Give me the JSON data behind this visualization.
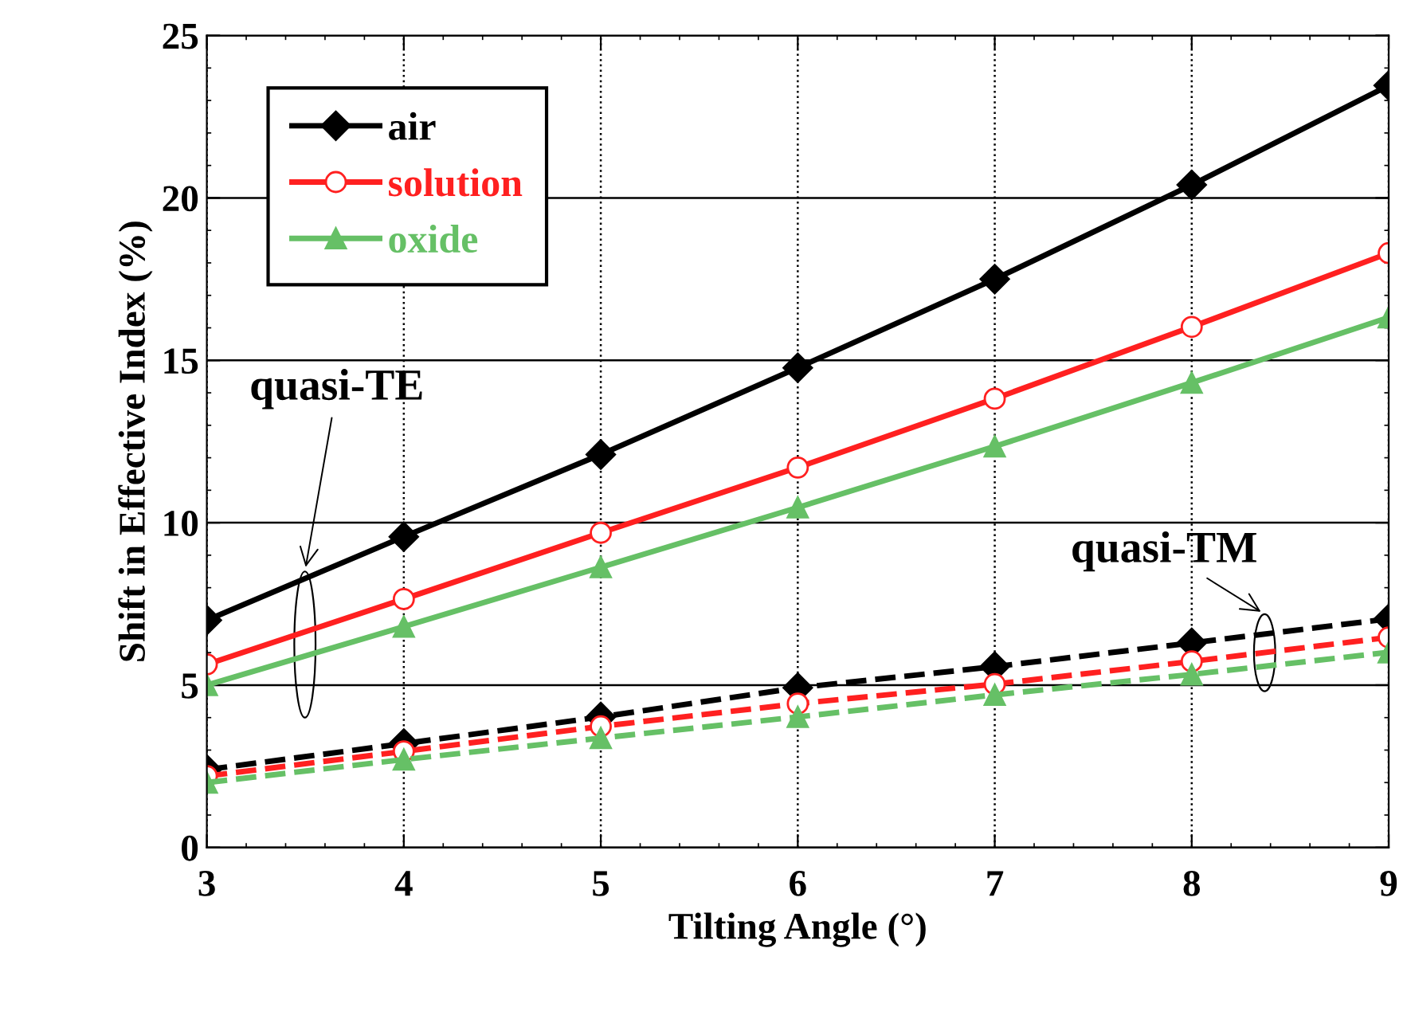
{
  "chart_data": {
    "type": "line",
    "xlabel": "Tilting Angle (°)",
    "ylabel": "Shift in Effective Index (%)",
    "x": [
      3,
      4,
      5,
      6,
      7,
      8,
      9
    ],
    "xlim": [
      3,
      9
    ],
    "xticks": [
      3,
      4,
      5,
      6,
      7,
      8,
      9
    ],
    "ylim": [
      0,
      25
    ],
    "yticks": [
      0,
      5,
      10,
      15,
      20,
      25
    ],
    "grid": true,
    "legend": "top left",
    "series": [
      {
        "name": "air",
        "color": "#000000",
        "marker": "diamond",
        "line_style": "solid",
        "values": [
          7.0,
          9.57,
          12.1,
          14.77,
          17.5,
          20.4,
          23.46
        ]
      },
      {
        "name": "solution",
        "color": "#ff2020",
        "marker": "circle",
        "line_style": "solid",
        "values": [
          5.64,
          7.65,
          9.69,
          11.7,
          13.82,
          16.03,
          18.3
        ]
      },
      {
        "name": "oxide",
        "color": "#66c066",
        "marker": "triangle",
        "line_style": "solid",
        "values": [
          5.0,
          6.8,
          8.63,
          10.47,
          12.35,
          14.31,
          16.32
        ]
      },
      {
        "color": "#000000",
        "marker": "diamond",
        "line_style": "dashed",
        "values": [
          2.4,
          3.2,
          4.02,
          4.92,
          5.57,
          6.3,
          7.04
        ]
      },
      {
        "color": "#ff2020",
        "marker": "circle",
        "line_style": "dashed",
        "values": [
          2.2,
          2.96,
          3.73,
          4.43,
          5.03,
          5.73,
          6.47
        ]
      },
      {
        "color": "#66c066",
        "marker": "triangle",
        "line_style": "dashed",
        "values": [
          2.0,
          2.71,
          3.37,
          4.02,
          4.7,
          5.33,
          6.01
        ]
      }
    ],
    "annotations": [
      "quasi-TE",
      "quasi-TM"
    ]
  }
}
